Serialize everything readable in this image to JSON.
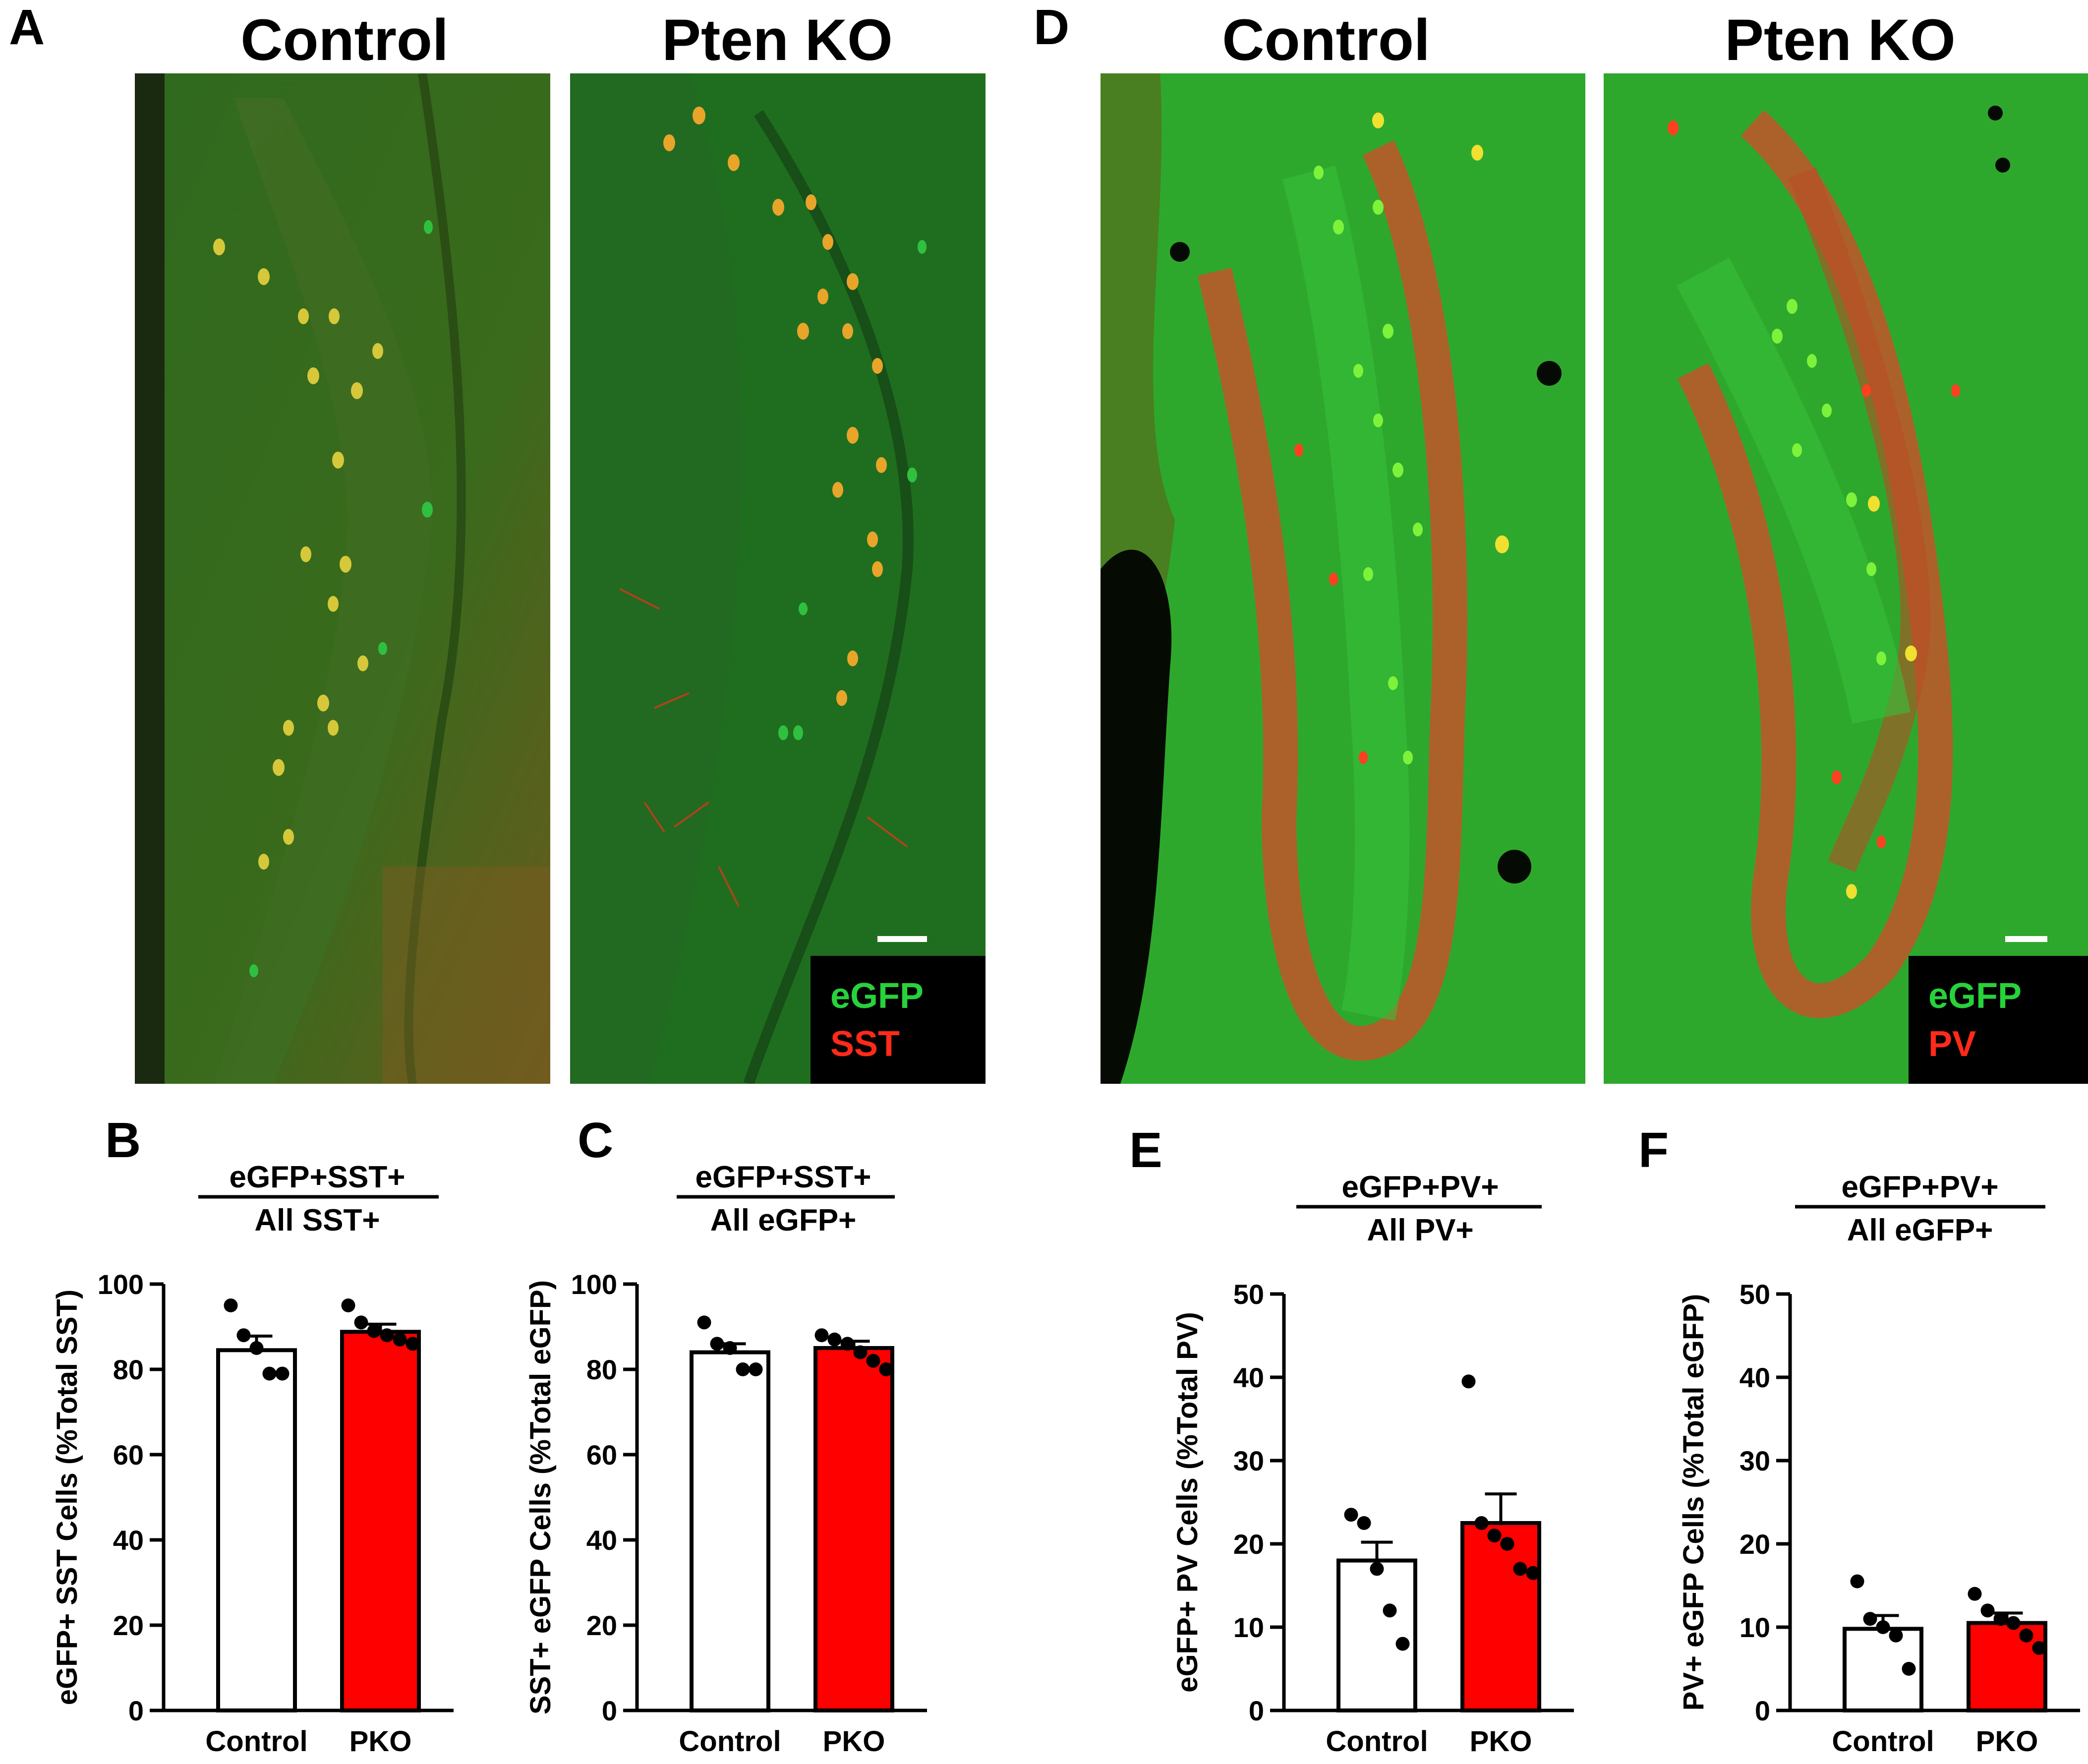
{
  "figure": {
    "panels": {
      "A": "A",
      "B": "B",
      "C": "C",
      "D": "D",
      "E": "E",
      "F": "F"
    },
    "micrographs": {
      "A_control_title": "Control",
      "A_pten_title": "Pten KO",
      "D_control_title": "Control",
      "D_pten_title": "Pten KO",
      "A_legend": {
        "green": "eGFP",
        "red": "SST"
      },
      "D_legend": {
        "green": "eGFP",
        "red": "PV"
      }
    },
    "colors": {
      "egfp_green": "#22c23a",
      "marker_red": "#ff2a1a",
      "tissue_green": "#1b6d1b",
      "pkobar": "#ff0000",
      "controlbar": "#ffffff"
    }
  },
  "chart_data": [
    {
      "panel": "B",
      "type": "bar",
      "title_numerator": "eGFP+SST+",
      "title_denominator": "All SST+",
      "ylabel": "eGFP+ SST Cells (%Total SST)",
      "categories": [
        "Control",
        "PKO"
      ],
      "values": [
        84.5,
        88.8
      ],
      "sem": [
        3.3,
        1.8
      ],
      "points": [
        [
          95,
          88,
          85,
          79,
          79
        ],
        [
          95,
          91,
          89,
          88,
          87,
          86
        ]
      ],
      "ylim": [
        0,
        100
      ],
      "yticks": [
        0,
        20,
        40,
        60,
        80,
        100
      ],
      "bar_colors": [
        "#ffffff",
        "#ff0000"
      ]
    },
    {
      "panel": "C",
      "type": "bar",
      "title_numerator": "eGFP+SST+",
      "title_denominator": "All eGFP+",
      "ylabel": "SST+ eGFP Cells (%Total eGFP)",
      "categories": [
        "Control",
        "PKO"
      ],
      "values": [
        84.0,
        85.0
      ],
      "sem": [
        2.0,
        1.6
      ],
      "points": [
        [
          91,
          86,
          85,
          80,
          80
        ],
        [
          88,
          87,
          86,
          84,
          82,
          80
        ]
      ],
      "ylim": [
        0,
        100
      ],
      "yticks": [
        0,
        20,
        40,
        60,
        80,
        100
      ],
      "bar_colors": [
        "#ffffff",
        "#ff0000"
      ]
    },
    {
      "panel": "E",
      "type": "bar",
      "title_numerator": "eGFP+PV+",
      "title_denominator": "All PV+",
      "ylabel": "eGFP+ PV Cells (%Total PV)",
      "categories": [
        "Control",
        "PKO"
      ],
      "values": [
        18.0,
        22.5
      ],
      "sem": [
        2.2,
        3.5
      ],
      "points": [
        [
          23.5,
          22.5,
          17,
          12,
          8
        ],
        [
          39.5,
          22.5,
          21,
          20,
          17,
          16.5
        ]
      ],
      "ylim": [
        0,
        50
      ],
      "yticks": [
        0,
        10,
        20,
        30,
        40,
        50
      ],
      "bar_colors": [
        "#ffffff",
        "#ff0000"
      ]
    },
    {
      "panel": "F",
      "type": "bar",
      "title_numerator": "eGFP+PV+",
      "title_denominator": "All eGFP+",
      "ylabel": "PV+ eGFP Cells (%Total eGFP)",
      "categories": [
        "Control",
        "PKO"
      ],
      "values": [
        9.8,
        10.5
      ],
      "sem": [
        1.6,
        1.2
      ],
      "points": [
        [
          15.5,
          11,
          10,
          9,
          5
        ],
        [
          14,
          12,
          11,
          10.5,
          9,
          7.5
        ]
      ],
      "ylim": [
        0,
        50
      ],
      "yticks": [
        0,
        10,
        20,
        30,
        40,
        50
      ],
      "bar_colors": [
        "#ffffff",
        "#ff0000"
      ]
    }
  ]
}
